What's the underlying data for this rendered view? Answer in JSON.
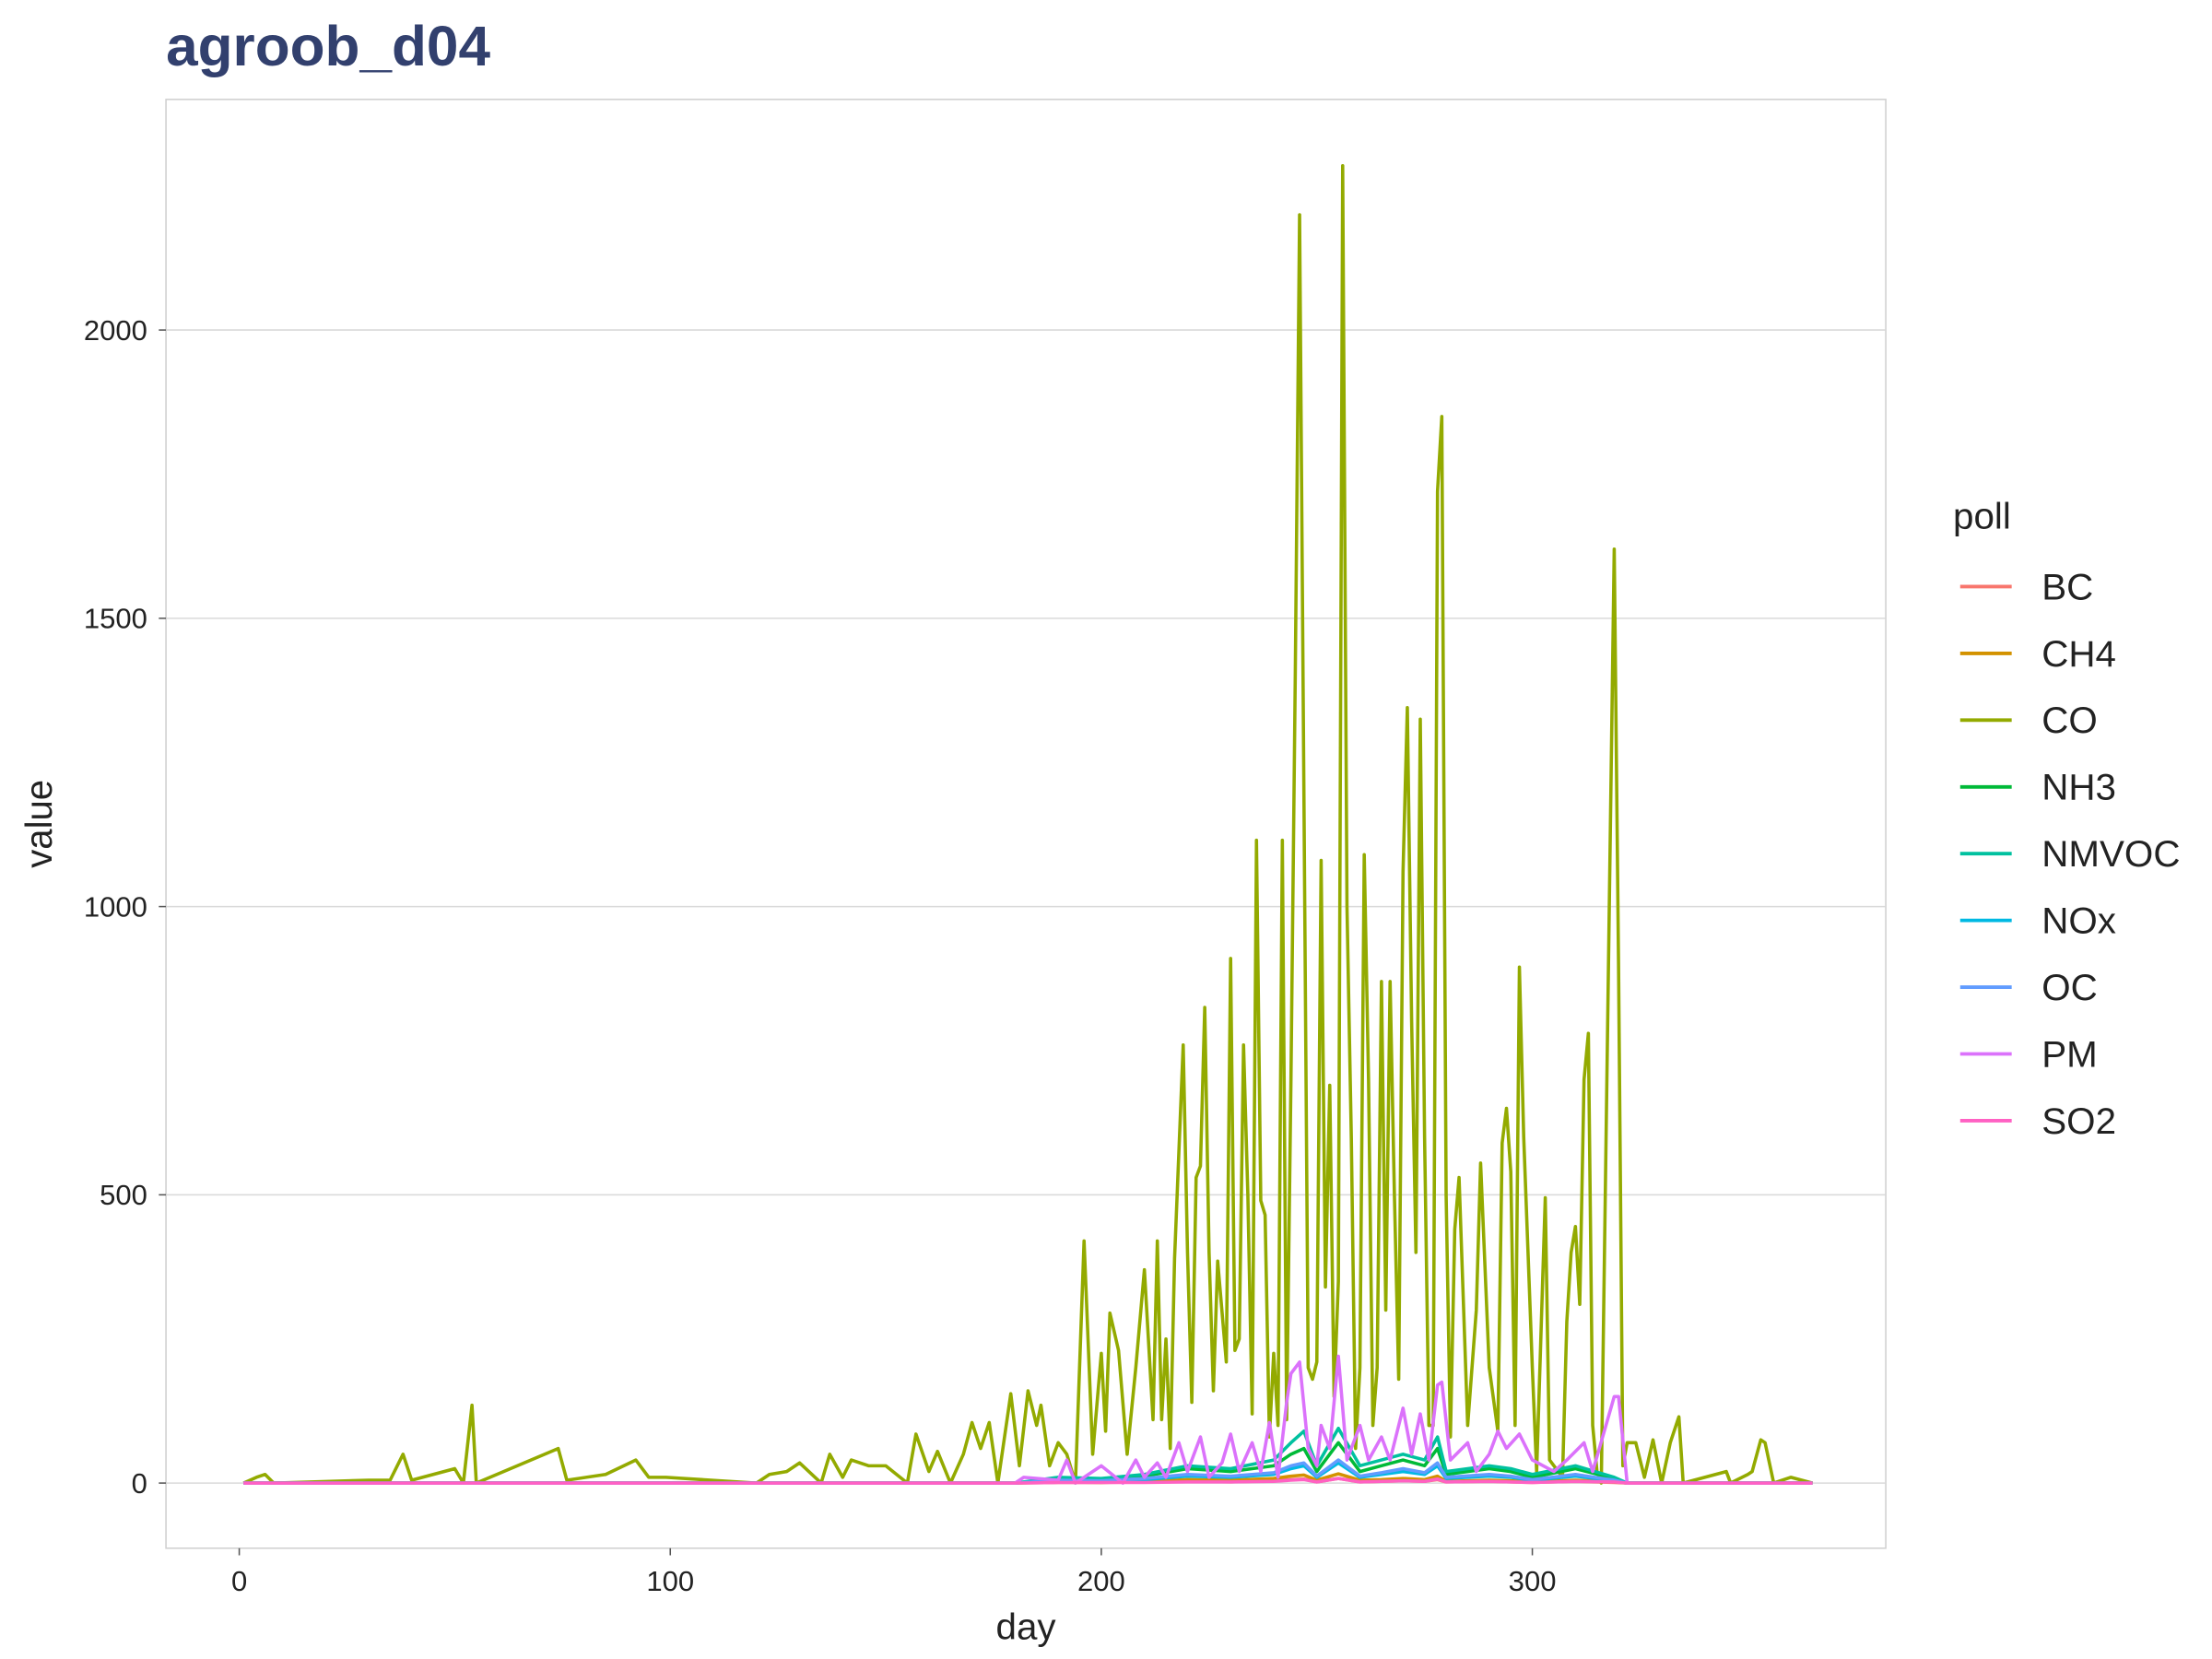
{
  "chart_data": {
    "type": "line",
    "title": "agroob_d04",
    "x_label": "day",
    "y_label": "value",
    "legend_title": "poll",
    "xlim": [
      -17,
      382
    ],
    "ylim": [
      -113,
      2400
    ],
    "xticks": [
      0,
      100,
      200,
      300
    ],
    "yticks": [
      0,
      500,
      1000,
      1500,
      2000
    ],
    "grid": "y",
    "x": [
      1,
      180,
      190,
      200,
      210,
      220,
      230,
      240,
      244,
      247,
      250,
      255,
      260,
      265,
      270,
      275,
      278,
      280,
      290,
      295,
      300,
      310,
      319,
      322,
      365
    ],
    "series": [
      {
        "name": "BC",
        "color": "#F8766D",
        "values": [
          0,
          0,
          1,
          1,
          2,
          3,
          2,
          4,
          6,
          7,
          2,
          8,
          2,
          3,
          4,
          3,
          6,
          2,
          3,
          2,
          1,
          3,
          1,
          0,
          0
        ]
      },
      {
        "name": "CH4",
        "color": "#D39200",
        "values": [
          0,
          0,
          2,
          1,
          3,
          6,
          5,
          8,
          12,
          14,
          5,
          16,
          5,
          6,
          8,
          6,
          12,
          3,
          5,
          4,
          2,
          5,
          2,
          0,
          0
        ]
      },
      {
        "name": "CO",
        "color": "#93AA00",
        "x": [
          1,
          4,
          6,
          8,
          30,
          35,
          38,
          40,
          50,
          52,
          54,
          55,
          74,
          76,
          85,
          92,
          95,
          99,
          120,
          123,
          127,
          130,
          135,
          137,
          140,
          142,
          146,
          150,
          155,
          157,
          160,
          162,
          165,
          168,
          170,
          172,
          174,
          176,
          179,
          181,
          183,
          185,
          186,
          188,
          190,
          192,
          194,
          196,
          198,
          200,
          201,
          202,
          204,
          206,
          208,
          210,
          212,
          213,
          214,
          215,
          216,
          217,
          219,
          220,
          221,
          222,
          223,
          224,
          225,
          226,
          227,
          229,
          230,
          231,
          232,
          233,
          234,
          235,
          236,
          237,
          238,
          239,
          240,
          241,
          242,
          243,
          244,
          245,
          246,
          247,
          248,
          249,
          250,
          251,
          252,
          253,
          254,
          255,
          256,
          257,
          258,
          259,
          260,
          261,
          262,
          263,
          264,
          265,
          266,
          267,
          268,
          269,
          270,
          271,
          272,
          273,
          274,
          275,
          276,
          277,
          278,
          279,
          280,
          281,
          282,
          283,
          285,
          287,
          288,
          290,
          292,
          293,
          294,
          295,
          296,
          297,
          298,
          300,
          301,
          303,
          304,
          306,
          307,
          308,
          309,
          310,
          311,
          312,
          313,
          314,
          315,
          316,
          319,
          320,
          321,
          322,
          324,
          326,
          328,
          330,
          332,
          334,
          335,
          345,
          346,
          350,
          351,
          353,
          354,
          356,
          360,
          365
        ],
        "values": [
          0,
          10,
          15,
          0,
          5,
          5,
          50,
          5,
          25,
          0,
          135,
          0,
          60,
          5,
          15,
          40,
          10,
          10,
          0,
          15,
          20,
          35,
          0,
          50,
          10,
          40,
          30,
          30,
          0,
          85,
          20,
          55,
          0,
          50,
          105,
          60,
          105,
          0,
          155,
          30,
          160,
          100,
          135,
          30,
          70,
          50,
          0,
          420,
          50,
          225,
          90,
          295,
          230,
          50,
          200,
          370,
          110,
          420,
          110,
          250,
          60,
          390,
          760,
          400,
          140,
          530,
          550,
          825,
          400,
          160,
          385,
          210,
          910,
          230,
          250,
          760,
          500,
          120,
          1115,
          490,
          465,
          80,
          225,
          100,
          1115,
          110,
          700,
          1400,
          2200,
          1200,
          200,
          180,
          210,
          1080,
          340,
          690,
          150,
          350,
          2285,
          1000,
          600,
          60,
          200,
          1090,
          700,
          100,
          200,
          870,
          300,
          870,
          500,
          180,
          1060,
          1345,
          800,
          400,
          1325,
          600,
          100,
          100,
          1720,
          1850,
          500,
          80,
          440,
          530,
          100,
          300,
          555,
          200,
          90,
          590,
          650,
          540,
          100,
          895,
          600,
          200,
          20,
          495,
          40,
          20,
          10,
          280,
          400,
          445,
          310,
          700,
          780,
          100,
          20,
          0,
          1620,
          900,
          30,
          70,
          70,
          10,
          75,
          0,
          70,
          115,
          0,
          20,
          0,
          15,
          20,
          75,
          70,
          0,
          10,
          0
        ]
      },
      {
        "name": "NH3",
        "color": "#00BA38",
        "values": [
          0,
          0,
          8,
          6,
          12,
          25,
          20,
          30,
          50,
          60,
          20,
          70,
          20,
          30,
          40,
          30,
          60,
          15,
          25,
          20,
          10,
          25,
          8,
          0,
          0
        ]
      },
      {
        "name": "NMVOC",
        "color": "#00C19F",
        "values": [
          0,
          0,
          10,
          8,
          15,
          30,
          25,
          40,
          70,
          90,
          30,
          95,
          30,
          40,
          50,
          40,
          80,
          20,
          30,
          25,
          15,
          30,
          10,
          0,
          0
        ]
      },
      {
        "name": "NOx",
        "color": "#00B9E3",
        "values": [
          0,
          0,
          4,
          3,
          6,
          12,
          10,
          15,
          25,
          30,
          10,
          35,
          10,
          15,
          20,
          15,
          30,
          8,
          12,
          10,
          5,
          12,
          4,
          0,
          0
        ]
      },
      {
        "name": "OC",
        "color": "#619CFF",
        "values": [
          0,
          0,
          5,
          4,
          8,
          15,
          12,
          18,
          30,
          35,
          12,
          40,
          12,
          18,
          25,
          18,
          35,
          10,
          15,
          12,
          6,
          15,
          5,
          0,
          0
        ]
      },
      {
        "name": "PM",
        "color": "#DB72FB",
        "x": [
          1,
          180,
          182,
          190,
          192,
          194,
          200,
          205,
          208,
          210,
          213,
          215,
          218,
          220,
          223,
          225,
          228,
          230,
          232,
          235,
          237,
          239,
          241,
          243,
          244,
          246,
          248,
          250,
          251,
          253,
          255,
          257,
          260,
          262,
          265,
          267,
          270,
          272,
          274,
          276,
          278,
          279,
          281,
          285,
          287,
          290,
          292,
          294,
          297,
          300,
          305,
          308,
          312,
          314,
          319,
          320,
          322,
          365
        ],
        "values": [
          0,
          0,
          10,
          5,
          40,
          0,
          30,
          0,
          40,
          10,
          35,
          10,
          70,
          20,
          80,
          10,
          35,
          85,
          20,
          70,
          20,
          105,
          10,
          140,
          190,
          210,
          60,
          30,
          100,
          60,
          220,
          40,
          100,
          40,
          80,
          40,
          130,
          50,
          120,
          40,
          170,
          175,
          40,
          70,
          20,
          50,
          90,
          60,
          85,
          40,
          20,
          40,
          70,
          20,
          150,
          150,
          0,
          0
        ]
      },
      {
        "name": "SO2",
        "color": "#FF61C3",
        "values": [
          0,
          0,
          1,
          1,
          1,
          2,
          2,
          3,
          5,
          6,
          2,
          8,
          2,
          3,
          4,
          3,
          7,
          2,
          3,
          2,
          1,
          3,
          2,
          0,
          0
        ]
      }
    ]
  }
}
